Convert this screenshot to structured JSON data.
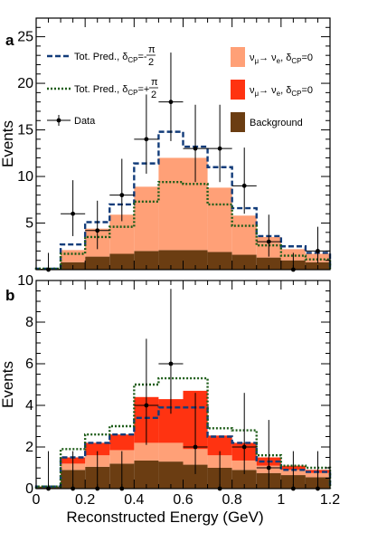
{
  "chart_data": [
    {
      "panel_label": "a",
      "type": "bar",
      "stacked": true,
      "ylabel": "Events",
      "xlabel": "",
      "xlim": [
        0,
        1.2
      ],
      "ylim": [
        0,
        27
      ],
      "xticks": [
        "0",
        "0.2",
        "0.4",
        "0.6",
        "0.8",
        "1",
        "1.2"
      ],
      "yticks": [
        "5",
        "10",
        "15",
        "20",
        "25"
      ],
      "bin_edges": [
        0,
        0.1,
        0.2,
        0.3,
        0.4,
        0.5,
        0.6,
        0.7,
        0.8,
        0.9,
        1.0,
        1.1,
        1.2
      ],
      "series": [
        {
          "key": "background",
          "label": "Background",
          "color": "#6b3d12",
          "values": [
            0.1,
            0.8,
            1.4,
            1.7,
            2.0,
            2.1,
            2.1,
            1.9,
            1.6,
            1.3,
            1.0,
            0.8
          ]
        },
        {
          "key": "numu_nue",
          "label": "ν_μ→ ν_e, δ_CP=0",
          "color": "#ffa077",
          "values": [
            0.0,
            1.3,
            3.0,
            4.2,
            6.9,
            9.9,
            9.9,
            6.9,
            4.2,
            2.2,
            1.2,
            0.9
          ]
        }
      ],
      "overlays": [
        {
          "key": "minus_half_pi",
          "label": "Tot. Pred., δ_CP=-π/2",
          "color": "#123c7a",
          "style": "dashed",
          "values": [
            0.1,
            2.7,
            5.1,
            7.0,
            11.4,
            14.8,
            13.2,
            11.0,
            6.6,
            3.6,
            2.5,
            1.8
          ]
        },
        {
          "key": "plus_half_pi",
          "label": "Tot. Pred., δ_CP=+π/2",
          "color": "#1d5c18",
          "style": "dotted",
          "values": [
            0.1,
            1.7,
            3.5,
            4.6,
            7.3,
            9.4,
            9.2,
            7.0,
            4.7,
            2.6,
            1.5,
            1.1
          ]
        }
      ],
      "data_points": {
        "label": "Data",
        "x": [
          0.05,
          0.15,
          0.25,
          0.35,
          0.45,
          0.55,
          0.65,
          0.75,
          0.85,
          0.95,
          1.05,
          1.15
        ],
        "y": [
          0,
          6,
          4.2,
          8,
          14,
          18,
          13,
          13,
          9,
          3,
          0,
          2
        ],
        "err_low": [
          0,
          2.4,
          2.0,
          2.8,
          3.7,
          4.2,
          3.6,
          3.6,
          3.0,
          1.6,
          0,
          1.3
        ],
        "err_high": [
          1.8,
          3.6,
          3.2,
          3.9,
          4.8,
          5.3,
          4.7,
          4.7,
          4.1,
          2.9,
          1.8,
          2.6
        ]
      },
      "legend_labels": {
        "minus": {
          "pre": "Tot. Pred., δ",
          "sub": "CP",
          "eq": "=-",
          "frac_num": "π",
          "frac_den": "2"
        },
        "plus": {
          "pre": "Tot. Pred., δ",
          "sub": "CP",
          "eq": "=+",
          "frac_num": "π",
          "frac_den": "2"
        },
        "numu": {
          "nu1": "ν",
          "sub1": "μ",
          "arrow": "→ ν",
          "sub2": "e",
          "rest": ", δ",
          "sub3": "CP",
          "tail": "=0"
        },
        "nue": {
          "nu1": "ν",
          "sub1": "μ",
          "arrow": "→ ν",
          "sub2": "e",
          "rest": ", δ",
          "sub3": "CP",
          "tail": "=0"
        },
        "background": "Background",
        "data": "Data"
      }
    },
    {
      "panel_label": "b",
      "type": "bar",
      "stacked": true,
      "ylabel": "Events",
      "xlabel": "Reconstructed Energy (GeV)",
      "xlim": [
        0,
        1.2
      ],
      "ylim": [
        0,
        10
      ],
      "xticks": [
        "0",
        "0.2",
        "0.4",
        "0.6",
        "0.8",
        "1",
        "1.2"
      ],
      "yticks": [
        "0",
        "2",
        "4",
        "6",
        "8",
        "10"
      ],
      "bin_edges": [
        0,
        0.1,
        0.2,
        0.3,
        0.4,
        0.5,
        0.6,
        0.7,
        0.8,
        0.9,
        1.0,
        1.1,
        1.2
      ],
      "series": [
        {
          "key": "background",
          "label": "Background",
          "color": "#6b3d12",
          "values": [
            0.1,
            0.9,
            1.05,
            1.2,
            1.35,
            1.3,
            1.15,
            1.0,
            0.9,
            0.75,
            0.65,
            0.55
          ]
        },
        {
          "key": "numu_nue",
          "label": "ν_μ→ ν_e, δ_CP=0",
          "color": "#ffa077",
          "values": [
            0.0,
            0.3,
            0.55,
            0.65,
            0.85,
            0.9,
            0.75,
            0.6,
            0.45,
            0.35,
            0.25,
            0.2
          ]
        },
        {
          "key": "nue_appearance",
          "label": "ν_μ→ ν_e, δ_CP=0",
          "color": "#ff3311",
          "values": [
            0.0,
            0.3,
            0.6,
            0.75,
            2.2,
            2.1,
            2.8,
            0.95,
            0.85,
            0.4,
            0.2,
            0.15
          ]
        }
      ],
      "overlays": [
        {
          "key": "minus_half_pi",
          "label": "Tot. Pred., δ_CP=-π/2",
          "color": "#123c7a",
          "style": "dashed",
          "values": [
            0.1,
            1.5,
            2.2,
            2.6,
            3.4,
            3.9,
            3.9,
            2.5,
            2.2,
            1.3,
            0.9,
            0.8
          ]
        },
        {
          "key": "plus_half_pi",
          "label": "Tot. Pred., δ_CP=+π/2",
          "color": "#1d5c18",
          "style": "dotted",
          "values": [
            0.1,
            1.9,
            2.6,
            3.0,
            5.0,
            5.3,
            5.3,
            2.9,
            2.8,
            1.6,
            1.1,
            1.0
          ]
        }
      ],
      "data_points": {
        "label": "Data",
        "x": [
          0.05,
          0.15,
          0.25,
          0.35,
          0.45,
          0.55,
          0.65,
          0.75,
          0.85,
          0.95,
          1.05,
          1.15
        ],
        "y": [
          0,
          0,
          0,
          0,
          4,
          6,
          2,
          0,
          2,
          1,
          0,
          0
        ],
        "err_low": [
          0,
          0,
          0,
          0,
          1.9,
          2.4,
          1.3,
          0,
          1.3,
          0.8,
          0,
          0
        ],
        "err_high": [
          1.8,
          1.8,
          1.8,
          1.8,
          3.2,
          3.6,
          2.6,
          1.8,
          2.6,
          2.3,
          1.8,
          1.8
        ]
      }
    }
  ]
}
